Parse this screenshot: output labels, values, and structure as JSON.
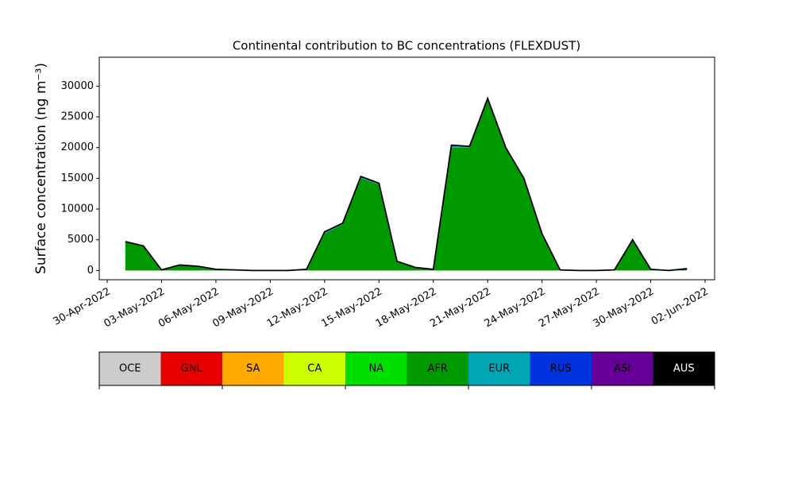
{
  "chart_data": {
    "type": "stacked_area",
    "title": "Continental contribution to BC concentrations (FLEXDUST)",
    "ylabel": "Surface concentration (ng m⁻³)",
    "x": [
      "2022-05-01",
      "2022-05-02",
      "2022-05-03",
      "2022-05-04",
      "2022-05-05",
      "2022-05-06",
      "2022-05-07",
      "2022-05-08",
      "2022-05-09",
      "2022-05-10",
      "2022-05-11",
      "2022-05-12",
      "2022-05-13",
      "2022-05-14",
      "2022-05-15",
      "2022-05-16",
      "2022-05-17",
      "2022-05-18",
      "2022-05-19",
      "2022-05-20",
      "2022-05-21",
      "2022-05-22",
      "2022-05-23",
      "2022-05-24",
      "2022-05-25",
      "2022-05-26",
      "2022-05-27",
      "2022-05-28",
      "2022-05-29",
      "2022-05-30",
      "2022-05-31",
      "2022-06-01"
    ],
    "xlim": [
      "2022-04-30",
      "2022-06-02"
    ],
    "xticks": [
      {
        "value": "2022-04-30",
        "label": "30-Apr-2022"
      },
      {
        "value": "2022-05-03",
        "label": "03-May-2022"
      },
      {
        "value": "2022-05-06",
        "label": "06-May-2022"
      },
      {
        "value": "2022-05-09",
        "label": "09-May-2022"
      },
      {
        "value": "2022-05-12",
        "label": "12-May-2022"
      },
      {
        "value": "2022-05-15",
        "label": "15-May-2022"
      },
      {
        "value": "2022-05-18",
        "label": "18-May-2022"
      },
      {
        "value": "2022-05-21",
        "label": "21-May-2022"
      },
      {
        "value": "2022-05-24",
        "label": "24-May-2022"
      },
      {
        "value": "2022-05-27",
        "label": "27-May-2022"
      },
      {
        "value": "2022-05-30",
        "label": "30-May-2022"
      },
      {
        "value": "2022-06-02",
        "label": "02-Jun-2022"
      }
    ],
    "ylim": [
      -1500,
      34700
    ],
    "yticks": [
      0,
      5000,
      10000,
      15000,
      20000,
      25000,
      30000
    ],
    "series": [
      {
        "name": "OCE",
        "color": "#cccccc",
        "values": [
          0,
          0,
          0,
          0,
          0,
          0,
          0,
          0,
          0,
          0,
          0,
          0,
          0,
          0,
          0,
          0,
          0,
          0,
          0,
          0,
          0,
          0,
          0,
          0,
          0,
          0,
          0,
          0,
          0,
          0,
          0,
          0
        ]
      },
      {
        "name": "GNL",
        "color": "#e60000",
        "values": [
          0,
          0,
          0,
          0,
          0,
          0,
          0,
          0,
          0,
          0,
          0,
          0,
          0,
          0,
          0,
          0,
          0,
          0,
          0,
          0,
          0,
          0,
          0,
          0,
          0,
          0,
          0,
          0,
          0,
          0,
          0,
          0
        ]
      },
      {
        "name": "SA",
        "color": "#ffaa00",
        "values": [
          0,
          0,
          0,
          0,
          0,
          0,
          0,
          0,
          0,
          0,
          0,
          0,
          0,
          0,
          0,
          0,
          0,
          0,
          0,
          0,
          0,
          0,
          0,
          0,
          0,
          0,
          0,
          0,
          0,
          0,
          0,
          0
        ]
      },
      {
        "name": "CA",
        "color": "#ccff00",
        "values": [
          0,
          0,
          0,
          0,
          0,
          0,
          0,
          0,
          0,
          0,
          0,
          0,
          0,
          0,
          0,
          0,
          0,
          0,
          0,
          0,
          0,
          0,
          0,
          0,
          0,
          0,
          0,
          0,
          0,
          0,
          0,
          0
        ]
      },
      {
        "name": "NA",
        "color": "#00e000",
        "values": [
          0,
          0,
          0,
          0,
          0,
          0,
          0,
          0,
          0,
          0,
          0,
          0,
          0,
          0,
          0,
          0,
          0,
          0,
          0,
          0,
          0,
          0,
          0,
          0,
          0,
          0,
          0,
          0,
          0,
          0,
          0,
          0
        ]
      },
      {
        "name": "AFR",
        "color": "#009900",
        "values": [
          4700,
          4000,
          100,
          800,
          700,
          200,
          100,
          0,
          0,
          0,
          200,
          6000,
          7500,
          15000,
          14000,
          1500,
          500,
          200,
          20000,
          20000,
          28000,
          20000,
          15000,
          6000,
          100,
          0,
          0,
          100,
          5000,
          200,
          0,
          300
        ]
      },
      {
        "name": "EUR",
        "color": "#00a6b4",
        "values": [
          0,
          0,
          0,
          100,
          0,
          0,
          0,
          0,
          0,
          0,
          0,
          300,
          200,
          300,
          200,
          0,
          0,
          0,
          400,
          200,
          0,
          0,
          0,
          0,
          0,
          0,
          0,
          0,
          0,
          0,
          0,
          0
        ]
      },
      {
        "name": "RUS",
        "color": "#0033dd",
        "values": [
          0,
          0,
          0,
          0,
          0,
          0,
          0,
          0,
          0,
          0,
          0,
          0,
          0,
          0,
          0,
          0,
          0,
          0,
          0,
          0,
          0,
          0,
          0,
          0,
          0,
          0,
          0,
          0,
          0,
          0,
          0,
          0
        ]
      },
      {
        "name": "ASI",
        "color": "#660099",
        "values": [
          0,
          0,
          0,
          0,
          0,
          0,
          0,
          0,
          0,
          0,
          0,
          0,
          0,
          0,
          0,
          0,
          0,
          0,
          0,
          0,
          0,
          0,
          0,
          0,
          0,
          0,
          0,
          0,
          0,
          0,
          0,
          0
        ]
      },
      {
        "name": "AUS",
        "color": "#000000",
        "values": [
          0,
          0,
          0,
          0,
          0,
          0,
          0,
          0,
          0,
          0,
          0,
          0,
          0,
          0,
          0,
          0,
          0,
          0,
          0,
          0,
          0,
          0,
          0,
          0,
          0,
          0,
          0,
          0,
          0,
          0,
          0,
          0
        ]
      }
    ]
  }
}
